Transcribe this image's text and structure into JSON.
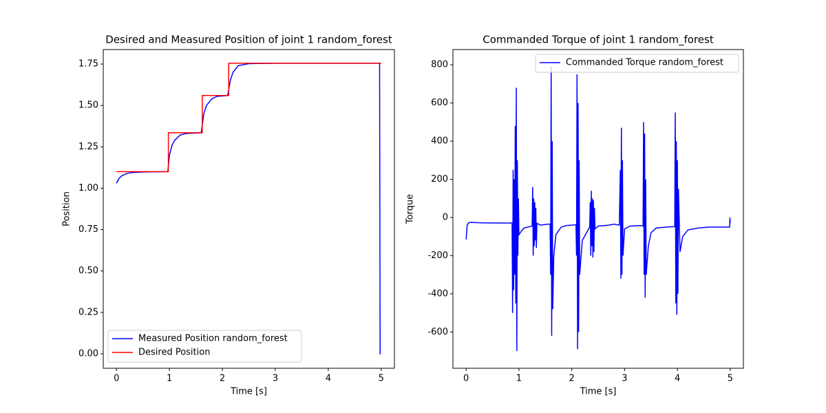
{
  "chart_data": [
    {
      "type": "line",
      "title": "Desired and Measured Position of joint 1 random_forest",
      "xlabel": "Time [s]",
      "ylabel": "Position",
      "xlim": [
        -0.25,
        5.25
      ],
      "ylim": [
        -0.0875,
        1.8375
      ],
      "xticks": [
        0,
        1,
        2,
        3,
        4,
        5
      ],
      "yticks": [
        {
          "value": 0,
          "label": "0.00"
        },
        0.25,
        {
          "value": 0.5,
          "label": "0.50"
        },
        0.75,
        {
          "value": 1,
          "label": "1.00"
        },
        1.25,
        {
          "value": 1.5,
          "label": "1.50"
        },
        1.75
      ],
      "legend": "lower left",
      "series": [
        {
          "name": "Measured Position random_forest",
          "color": "#0000ff",
          "x": [
            0,
            0.05,
            0.1,
            0.2,
            0.3,
            0.5,
            0.97,
            1.0,
            1.05,
            1.1,
            1.2,
            1.3,
            1.6,
            1.65,
            1.7,
            1.8,
            1.9,
            2.1,
            2.15,
            2.2,
            2.3,
            2.5,
            3,
            4.97,
            4.98,
            4.99
          ],
          "values": [
            1.03,
            1.06,
            1.075,
            1.09,
            1.095,
            1.098,
            1.1,
            1.2,
            1.26,
            1.29,
            1.32,
            1.33,
            1.335,
            1.45,
            1.5,
            1.54,
            1.555,
            1.56,
            1.65,
            1.7,
            1.74,
            1.752,
            1.755,
            1.755,
            0,
            0
          ]
        },
        {
          "name": "Desired Position",
          "color": "#ff0000",
          "x": [
            0,
            0.98,
            0.98,
            1.62,
            1.62,
            2.12,
            2.12,
            5
          ],
          "values": [
            1.1,
            1.1,
            1.335,
            1.335,
            1.56,
            1.56,
            1.755,
            1.755
          ]
        }
      ]
    },
    {
      "type": "line",
      "title": "Commanded Torque of joint 1 random_forest",
      "xlabel": "Time [s]",
      "ylabel": "Torque",
      "xlim": [
        -0.25,
        5.25
      ],
      "ylim": [
        -790,
        880
      ],
      "xticks": [
        0,
        1,
        2,
        3,
        4,
        5
      ],
      "yticks": [
        -600,
        -400,
        -200,
        0,
        200,
        400,
        600,
        800
      ],
      "legend": "upper right",
      "series": [
        {
          "name": "Commanded Torque random_forest",
          "color": "#0000ff",
          "x": [
            0,
            0.02,
            0.05,
            0.1,
            0.3,
            0.6,
            0.87,
            0.88,
            0.89,
            0.9,
            0.91,
            0.92,
            0.93,
            0.94,
            0.95,
            0.96,
            0.97,
            0.98,
            0.99,
            1.0,
            1.05,
            1.1,
            1.2,
            1.25,
            1.26,
            1.27,
            1.28,
            1.29,
            1.3,
            1.31,
            1.32,
            1.33,
            1.34,
            1.4,
            1.55,
            1.59,
            1.6,
            1.61,
            1.62,
            1.63,
            1.64,
            1.66,
            1.7,
            1.8,
            1.9,
            2.0,
            2.08,
            2.09,
            2.1,
            2.11,
            2.12,
            2.13,
            2.14,
            2.15,
            2.2,
            2.3,
            2.34,
            2.35,
            2.36,
            2.37,
            2.38,
            2.39,
            2.4,
            2.41,
            2.42,
            2.43,
            2.44,
            2.5,
            2.7,
            2.8,
            2.9,
            2.92,
            2.93,
            2.94,
            2.95,
            2.96,
            2.97,
            3.0,
            3.1,
            3.3,
            3.35,
            3.36,
            3.37,
            3.38,
            3.39,
            3.4,
            3.41,
            3.45,
            3.5,
            3.6,
            3.8,
            3.95,
            3.96,
            3.97,
            3.98,
            3.99,
            4.0,
            4.01,
            4.02,
            4.05,
            4.1,
            4.2,
            4.4,
            4.6,
            4.8,
            4.99,
            4.995,
            5.0
          ],
          "values": [
            -115,
            -40,
            -27,
            -26,
            -28,
            -29,
            -29,
            -500,
            250,
            -380,
            200,
            -300,
            480,
            -450,
            680,
            -700,
            300,
            -200,
            100,
            -90,
            -70,
            -55,
            -48,
            -45,
            160,
            -200,
            100,
            -150,
            80,
            -120,
            50,
            -160,
            -30,
            -40,
            -35,
            -35,
            -300,
            790,
            -620,
            400,
            -480,
            -200,
            -90,
            -50,
            -42,
            -40,
            -38,
            -200,
            750,
            -690,
            600,
            -600,
            300,
            -300,
            -120,
            -70,
            -50,
            80,
            -200,
            140,
            -150,
            100,
            -210,
            90,
            -180,
            50,
            -60,
            -45,
            -40,
            -35,
            -40,
            250,
            -320,
            470,
            -300,
            300,
            -200,
            -60,
            -45,
            -42,
            -45,
            500,
            -300,
            440,
            -420,
            200,
            -300,
            -150,
            -80,
            -55,
            -50,
            -48,
            550,
            -450,
            400,
            -510,
            300,
            -400,
            150,
            -180,
            -100,
            -65,
            -55,
            -50,
            -50,
            -50,
            0,
            -30
          ]
        }
      ]
    }
  ]
}
